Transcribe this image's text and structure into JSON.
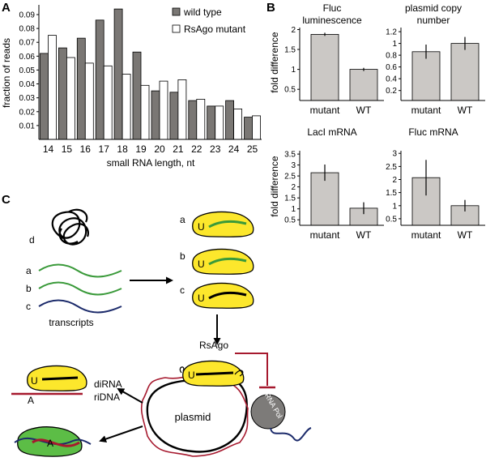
{
  "panels": {
    "a": "A",
    "b": "B",
    "c": "C"
  },
  "chart_data": [
    {
      "type": "bar",
      "panel": "A",
      "categories": [
        "14",
        "15",
        "16",
        "17",
        "18",
        "19",
        "20",
        "21",
        "22",
        "23",
        "24",
        "25"
      ],
      "series": [
        {
          "name": "wild type",
          "color": "#7a7774",
          "values": [
            0.062,
            0.066,
            0.073,
            0.086,
            0.094,
            0.063,
            0.035,
            0.034,
            0.028,
            0.024,
            0.028,
            0.016
          ]
        },
        {
          "name": "RsAgo mutant",
          "color": "#ffffff",
          "values": [
            0.075,
            0.059,
            0.055,
            0.053,
            0.047,
            0.039,
            0.042,
            0.043,
            0.029,
            0.024,
            0.022,
            0.017
          ]
        }
      ],
      "yticks": [
        "0.01",
        "0.02",
        "0.03",
        "0.04",
        "0.05",
        "0.06",
        "0.07",
        "0.08",
        "0.09"
      ],
      "ylim": [
        0,
        0.097
      ],
      "xlabel": "small RNA length, nt",
      "ylabel": "fraction of reads",
      "legend": "top-right"
    },
    {
      "type": "bar",
      "panel": "B",
      "title": "Fluc luminescence",
      "categories": [
        "mutant",
        "WT"
      ],
      "values": [
        1.88,
        1.0
      ],
      "errors": [
        0.04,
        0.04
      ],
      "yticks": [
        "0.5",
        "1",
        "1.5",
        "2"
      ],
      "ytick_values": [
        0.5,
        1,
        1.5,
        2
      ],
      "ylim": [
        0.22,
        2.05
      ],
      "ylabel": "fold difference"
    },
    {
      "type": "bar",
      "panel": "B",
      "title": "plasmid copy number",
      "categories": [
        "mutant",
        "WT"
      ],
      "values": [
        0.86,
        1.0
      ],
      "errors": [
        0.12,
        0.11
      ],
      "yticks": [
        "0.2",
        "0.4",
        "0.6",
        "0.8",
        "1",
        "1.2"
      ],
      "ytick_values": [
        0.2,
        0.4,
        0.6,
        0.8,
        1,
        1.2
      ],
      "ylim": [
        0.03,
        1.27
      ],
      "ylabel": ""
    },
    {
      "type": "bar",
      "panel": "B",
      "title": "LacI mRNA",
      "categories": [
        "mutant",
        "WT"
      ],
      "values": [
        2.65,
        1.03
      ],
      "errors": [
        0.37,
        0.27
      ],
      "yticks": [
        "0.5",
        "1",
        "1.5",
        "2",
        "2.5",
        "3",
        "3.5"
      ],
      "ytick_values": [
        0.5,
        1,
        1.5,
        2,
        2.5,
        3,
        3.5
      ],
      "ylim": [
        0.25,
        3.65
      ],
      "ylabel": "fold difference"
    },
    {
      "type": "bar",
      "panel": "B",
      "title": "Fluc mRNA",
      "categories": [
        "mutant",
        "WT"
      ],
      "values": [
        2.07,
        1.0
      ],
      "errors": [
        0.68,
        0.22
      ],
      "yticks": [
        "0.5",
        "1",
        "1.5",
        "2",
        "2.5",
        "3"
      ],
      "ytick_values": [
        0.5,
        1,
        1.5,
        2,
        2.5,
        3
      ],
      "ylim": [
        0.25,
        3.1
      ],
      "ylabel": ""
    }
  ],
  "diagram": {
    "transcript_labels": [
      "d",
      "a",
      "b",
      "c"
    ],
    "transcripts_caption": "transcripts",
    "loaded_labels": [
      "a",
      "b",
      "c"
    ],
    "u_letter": "U",
    "a_letter": "A",
    "rsago_label": "RsAgo",
    "rna_pol_label": "RNA Pol",
    "plasmid_label": "plasmid",
    "dirna_label": "diRNA",
    "ridna_label": "riDNA",
    "colors": {
      "green": "#3a9a3a",
      "navy": "#1c2b6b",
      "red": "#a6192e",
      "yellow": "#fce72c",
      "bar_grey": "#cbc8c5",
      "pol_grey": "#7d7b79",
      "ago_green": "#5cbd46"
    }
  }
}
